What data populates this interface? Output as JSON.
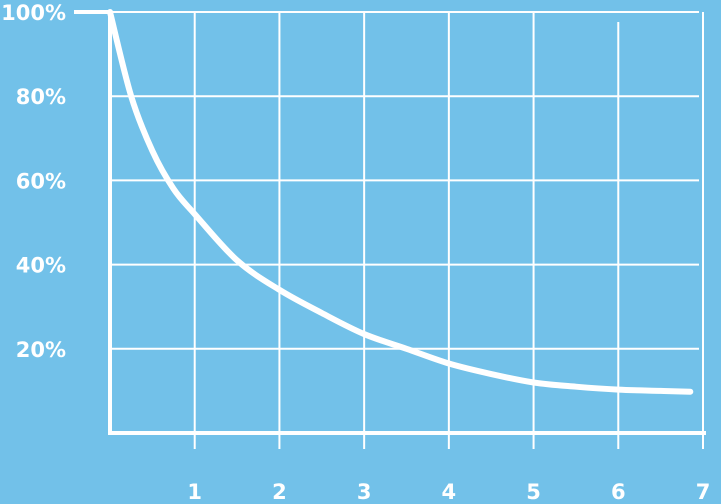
{
  "chart_data": {
    "type": "line",
    "title": "",
    "xlabel": "",
    "ylabel": "",
    "xlim": [
      0,
      7
    ],
    "ylim": [
      0,
      100
    ],
    "x_ticks": [
      1,
      2,
      3,
      4,
      5,
      6,
      7
    ],
    "x_tick_labels": [
      "1",
      "2",
      "3",
      "4",
      "5",
      "6",
      "7"
    ],
    "y_ticks": [
      20,
      40,
      60,
      80,
      100
    ],
    "y_tick_labels": [
      "20%",
      "40%",
      "60%",
      "80%",
      "100%"
    ],
    "grid": true,
    "series": [
      {
        "x": [
          0,
          0.25,
          0.5,
          0.75,
          1,
          1.5,
          2,
          2.5,
          3,
          3.5,
          4,
          4.5,
          5,
          5.5,
          6,
          6.5,
          6.85
        ],
        "y": [
          100,
          80,
          67,
          58,
          52,
          41,
          34,
          28.5,
          23.5,
          20,
          16.5,
          14,
          12,
          11,
          10.3,
          10,
          9.8
        ]
      }
    ],
    "colors": {
      "background": "#72c1e9",
      "line": "#ffffff",
      "grid": "#ffffff",
      "text": "#ffffff"
    }
  }
}
